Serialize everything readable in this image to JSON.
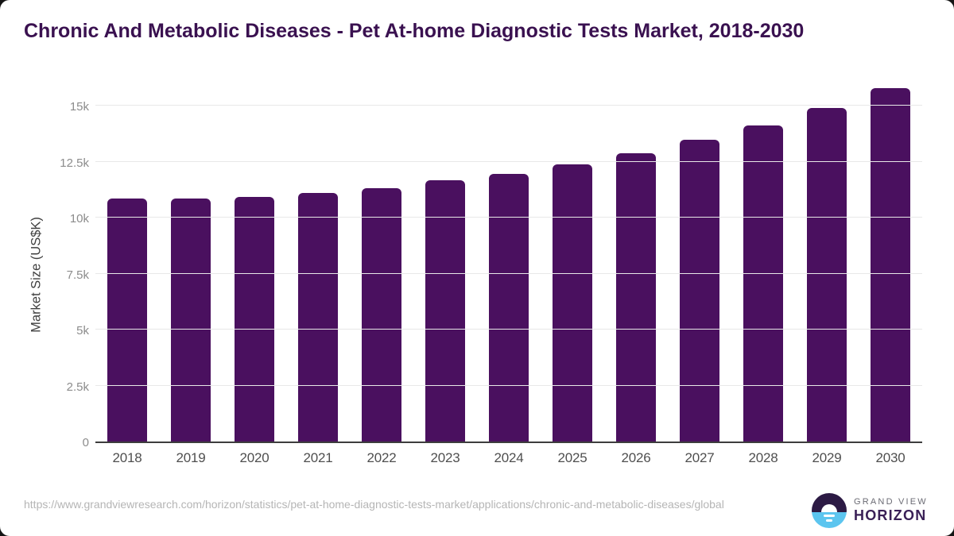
{
  "title": "Chronic And Metabolic Diseases - Pet At-home Diagnostic Tests Market, 2018-2030",
  "chart_data": {
    "type": "bar",
    "title": "Chronic And Metabolic Diseases - Pet At-home Diagnostic Tests Market, 2018-2030",
    "categories": [
      "2018",
      "2019",
      "2020",
      "2021",
      "2022",
      "2023",
      "2024",
      "2025",
      "2026",
      "2027",
      "2028",
      "2029",
      "2030"
    ],
    "values": [
      10850,
      10850,
      10940,
      11110,
      11330,
      11650,
      11960,
      12370,
      12870,
      13460,
      14120,
      14910,
      15780
    ],
    "xlabel": "",
    "ylabel": "Market Size (US$K)",
    "ylim": [
      0,
      15000
    ],
    "ytick_values": [
      0,
      2500,
      5000,
      7500,
      10000,
      12500,
      15000
    ],
    "ytick_labels": [
      "0",
      "2.5k",
      "5k",
      "7.5k",
      "10k",
      "12.5k",
      "15k"
    ],
    "grid": "horizontal-only",
    "legend_position": "none",
    "bar_color": "#4a105f"
  },
  "colors": {
    "title_text": "#3a1150",
    "bar_fill": "#4a105f",
    "gridline": "#e8e8e8",
    "axis_line": "#3d3d3d",
    "y_tick_text": "#8c8c8c",
    "x_tick_text": "#4f4f4f",
    "source_text": "#b5b5b5",
    "logo_dark": "#2c1a44",
    "logo_blue": "#5cc5ef",
    "logo_brand_text": "#3a2057"
  },
  "footer": {
    "source_url": "https://www.grandviewresearch.com/horizon/statistics/pet-at-home-diagnostic-tests-market/applications/chronic-and-metabolic-diseases/global",
    "logo": {
      "brand_top": "GRAND VIEW",
      "brand_bottom": "HORIZON"
    }
  }
}
